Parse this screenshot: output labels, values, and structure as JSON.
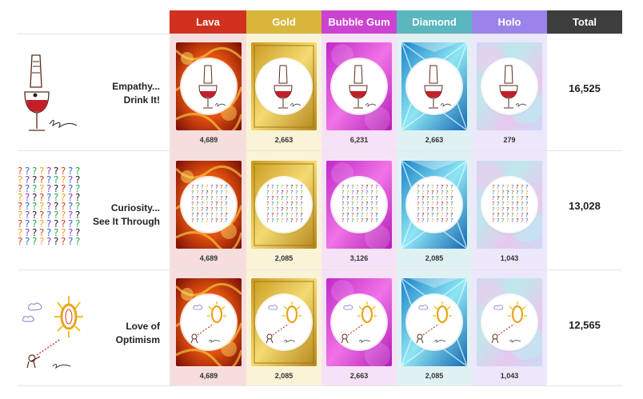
{
  "columns": [
    {
      "label": "Lava",
      "color": "#d2301f",
      "bg": "#f7dede"
    },
    {
      "label": "Gold",
      "color": "#d8b63c",
      "bg": "#fbf3d8"
    },
    {
      "label": "Bubble Gum",
      "color": "#cb43d0",
      "bg": "#f6e2f7"
    },
    {
      "label": "Diamond",
      "color": "#5ab6bf",
      "bg": "#e0f1f3"
    },
    {
      "label": "Holo",
      "color": "#9c83ea",
      "bg": "#ece7fb"
    },
    {
      "label": "Total",
      "color": "#3e3e3e",
      "bg": "#ffffff"
    }
  ],
  "rows": [
    {
      "title_line1": "Empathy...",
      "title_line2": "Drink It!",
      "counts": [
        "4,689",
        "2,663",
        "6,231",
        "2,663",
        "279"
      ],
      "total": "16,525",
      "art": "wine-glass-icon"
    },
    {
      "title_line1": "Curiosity...",
      "title_line2": "See It Through",
      "counts": [
        "4,689",
        "2,085",
        "3,126",
        "2,085",
        "1,043"
      ],
      "total": "13,028",
      "art": "question-marks-icon"
    },
    {
      "title_line1": "Love of",
      "title_line2": "Optimism",
      "counts": [
        "4,689",
        "2,085",
        "2,663",
        "2,085",
        "1,043"
      ],
      "total": "12,565",
      "art": "zero-sun-icon"
    }
  ]
}
